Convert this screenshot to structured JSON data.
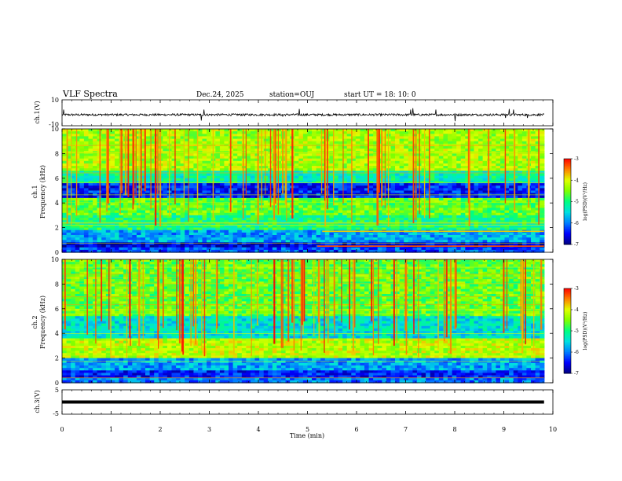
{
  "header": {
    "title": "VLF Spectra",
    "date": "Dec.24, 2025",
    "station": "station=OUJ",
    "start": "start  UT =   18: 10: 0"
  },
  "colorbar_label": "log(PSD)(V²/Hz)",
  "colormap": [
    "#000080",
    "#0000ff",
    "#0080ff",
    "#00e0e0",
    "#00ff80",
    "#80ff00",
    "#e0ff00",
    "#ff8000",
    "#ff0000",
    "#ffffff"
  ],
  "chart_data": [
    {
      "type": "line",
      "name": "waveform-ch1",
      "ylabel": "ch.1(V)",
      "ylim": [
        -10,
        10
      ],
      "yticks": [
        "10",
        "-10"
      ],
      "x": [
        0,
        9.82
      ],
      "baseline": -1.5,
      "spikes": [
        {
          "t": 0.03,
          "v": 2.5
        },
        {
          "t": 2.84,
          "v": -6
        },
        {
          "t": 2.89,
          "v": 2.5
        },
        {
          "t": 4.5,
          "v": -3
        },
        {
          "t": 4.83,
          "v": 3
        },
        {
          "t": 7.1,
          "v": 2.5
        },
        {
          "t": 7.15,
          "v": 3.5
        },
        {
          "t": 7.62,
          "v": 2.5
        },
        {
          "t": 8.01,
          "v": -6.5
        },
        {
          "t": 9.03,
          "v": -4
        },
        {
          "t": 9.11,
          "v": 3
        },
        {
          "t": 9.2,
          "v": 2.5
        },
        {
          "t": 9.48,
          "v": -4
        }
      ]
    },
    {
      "type": "heatmap",
      "name": "spectrogram-ch1",
      "ylabel": "ch.1",
      "ylabel2": "Frequency (kHz)",
      "ylim": [
        0,
        10
      ],
      "yticks": [
        "0",
        "2",
        "4",
        "6",
        "8",
        "10"
      ],
      "xlim": [
        0,
        9.82
      ],
      "colorbar": {
        "min": -7,
        "max": -3,
        "ticks": [
          "-3",
          "-4",
          "-5",
          "-6",
          "-7"
        ]
      },
      "bands": [
        {
          "f0": 0,
          "f1": 0.4,
          "level": -6.2
        },
        {
          "f0": 0.4,
          "f1": 0.9,
          "level": -6.6
        },
        {
          "f0": 0.9,
          "f1": 1.8,
          "level": -5.8
        },
        {
          "f0": 1.8,
          "f1": 3.0,
          "level": -5.0
        },
        {
          "f0": 3.0,
          "f1": 4.5,
          "level": -4.6
        },
        {
          "f0": 4.5,
          "f1": 5.6,
          "level": -6.4
        },
        {
          "f0": 5.6,
          "f1": 6.6,
          "level": -5.2
        },
        {
          "f0": 6.6,
          "f1": 10.0,
          "level": -4.3
        }
      ],
      "features": [
        {
          "f": 0.5,
          "t0": 5.2,
          "t1": 9.82,
          "level": -3.3
        },
        {
          "f": 1.7,
          "t0": 5.3,
          "t1": 9.82,
          "level": -3.8
        }
      ]
    },
    {
      "type": "heatmap",
      "name": "spectrogram-ch2",
      "ylabel": "ch.2",
      "ylabel2": "Frequency (kHz)",
      "ylim": [
        0,
        10
      ],
      "yticks": [
        "0",
        "2",
        "4",
        "6",
        "8",
        "10"
      ],
      "xlim": [
        0,
        9.82
      ],
      "colorbar": {
        "min": -7,
        "max": -3,
        "ticks": [
          "-3",
          "-4",
          "-5",
          "-6",
          "-7"
        ]
      },
      "bands": [
        {
          "f0": 0,
          "f1": 0.5,
          "level": -6.0
        },
        {
          "f0": 0.5,
          "f1": 1.0,
          "level": -6.4
        },
        {
          "f0": 1.0,
          "f1": 2.0,
          "level": -5.8
        },
        {
          "f0": 2.0,
          "f1": 3.6,
          "level": -4.2
        },
        {
          "f0": 3.6,
          "f1": 5.5,
          "level": -5.4
        },
        {
          "f0": 5.5,
          "f1": 10.0,
          "level": -4.6
        }
      ],
      "features": []
    },
    {
      "type": "line",
      "name": "waveform-ch3",
      "ylabel": "ch.3(V)",
      "ylim": [
        -5,
        5
      ],
      "yticks": [
        "5",
        "-5"
      ],
      "x": [
        0,
        9.82
      ],
      "baseline": 0,
      "spikes": []
    }
  ],
  "xaxis": {
    "label": "Time (min)",
    "xlim": [
      0,
      10
    ],
    "ticks": [
      "0",
      "1",
      "2",
      "3",
      "4",
      "5",
      "6",
      "7",
      "8",
      "9",
      "10"
    ]
  }
}
